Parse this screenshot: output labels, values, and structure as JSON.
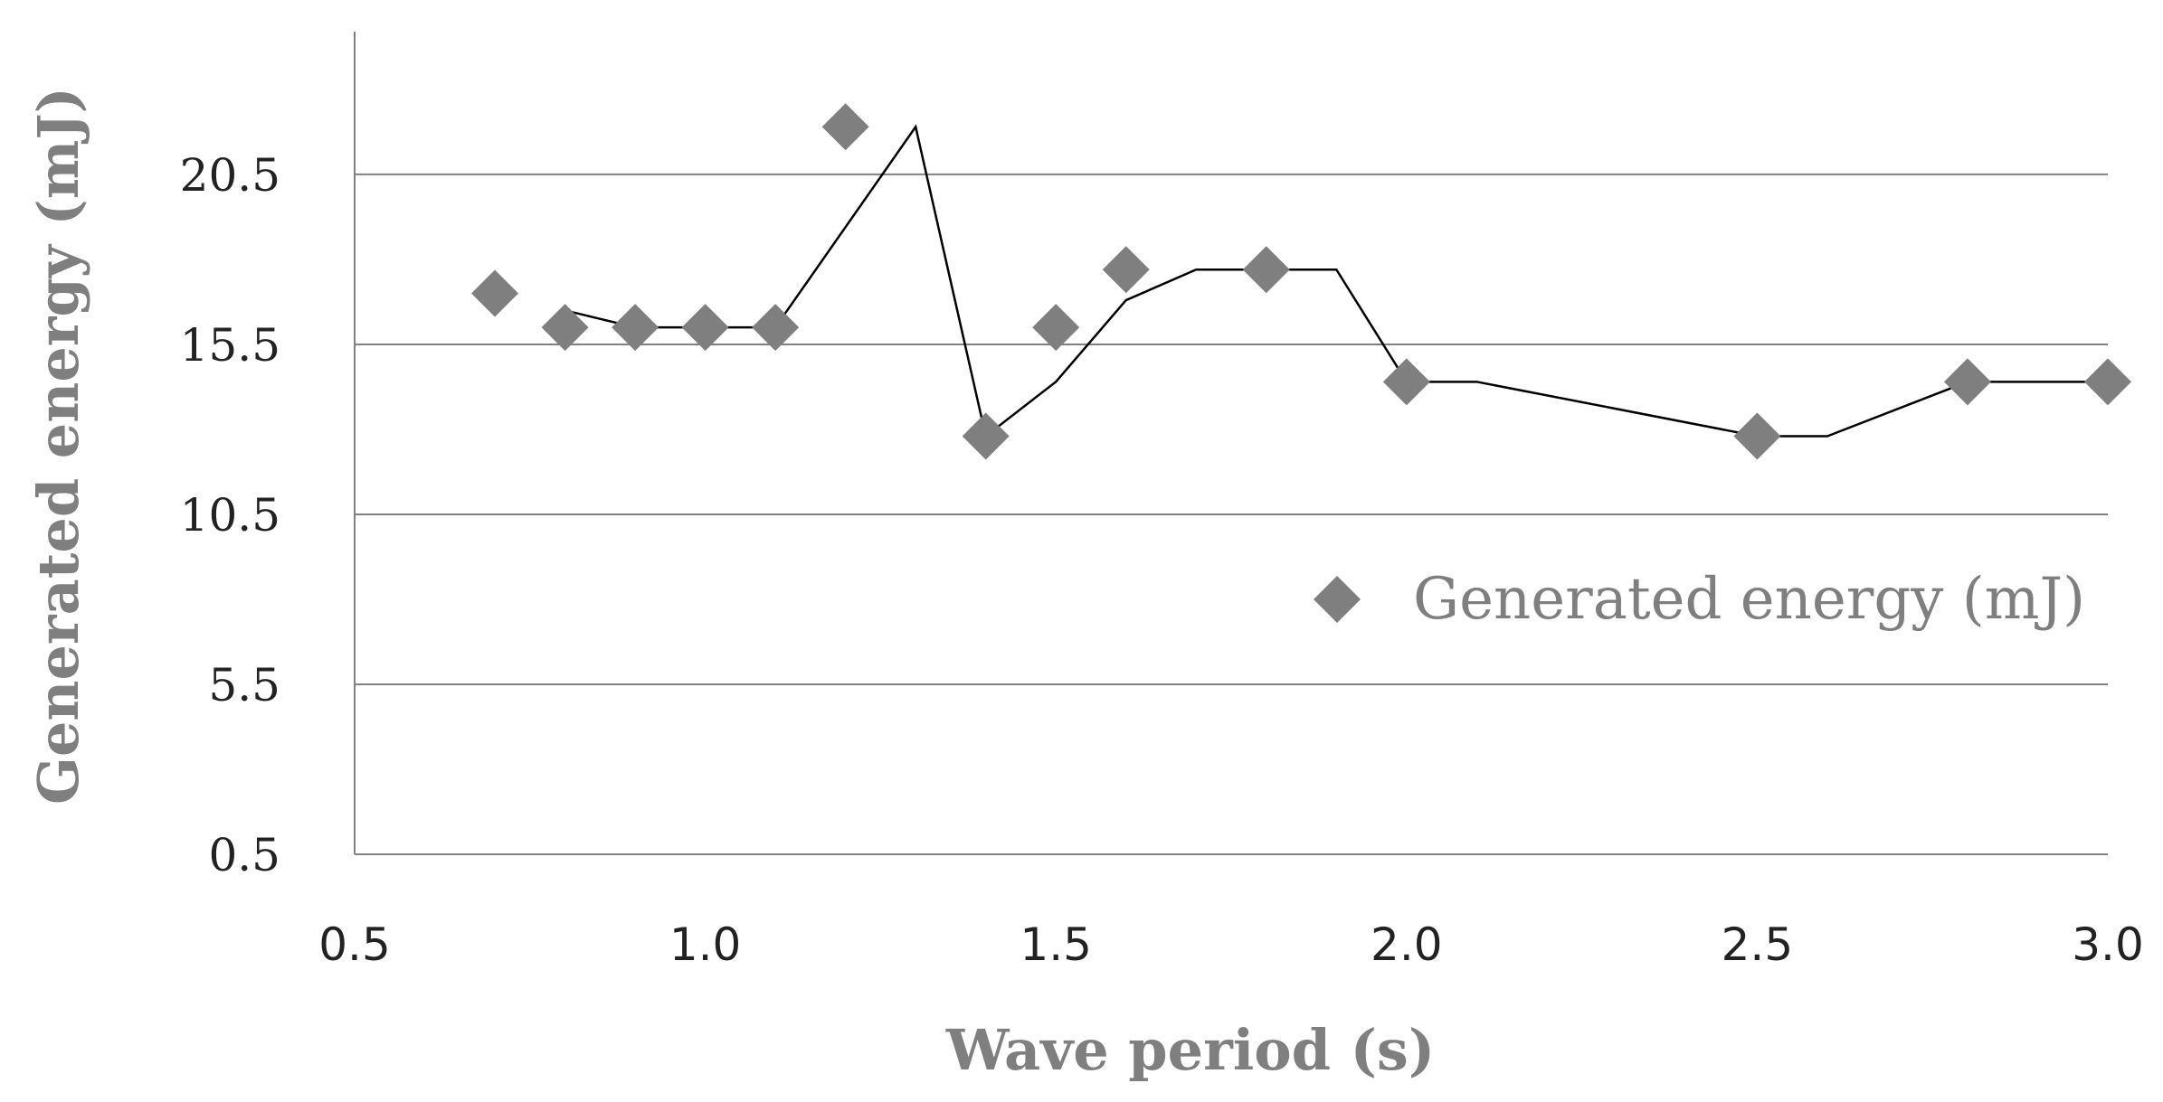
{
  "chart_data": {
    "type": "scatter",
    "title": "",
    "xlabel": "Wave period (s)",
    "ylabel": "Generated energy (mJ)",
    "xlim": [
      0.5,
      3.0
    ],
    "ylim": [
      0.5,
      24.7
    ],
    "x_ticks": [
      "0.5",
      "1.0",
      "1.5",
      "2.0",
      "2.5",
      "3.0"
    ],
    "y_ticks": [
      "0.5",
      "5.5",
      "10.5",
      "15.5",
      "20.5"
    ],
    "grid": true,
    "legend_position": "right",
    "series": [
      {
        "name": "Generated energy (mJ)",
        "marker": "diamond",
        "color": "#7f7f7f",
        "x": [
          0.7,
          0.8,
          0.9,
          1.0,
          1.1,
          1.2,
          1.4,
          1.5,
          1.6,
          1.8,
          2.0,
          2.5,
          2.8,
          3.0
        ],
        "y": [
          17.0,
          16.0,
          16.0,
          16.0,
          16.0,
          21.9,
          12.8,
          16.0,
          17.7,
          17.7,
          14.4,
          12.8,
          14.4,
          14.4
        ]
      }
    ],
    "trendline": {
      "type": "moving average",
      "color": "#000000",
      "x": [
        0.8,
        0.9,
        1.0,
        1.1,
        1.3,
        1.4,
        1.5,
        1.6,
        1.7,
        1.9,
        2.0,
        2.1,
        2.5,
        2.6,
        2.8,
        3.0
      ],
      "y": [
        16.5,
        16.0,
        16.0,
        16.0,
        21.9,
        12.8,
        14.4,
        16.8,
        17.7,
        17.7,
        14.4,
        14.4,
        12.8,
        12.8,
        14.4,
        14.4
      ]
    }
  }
}
